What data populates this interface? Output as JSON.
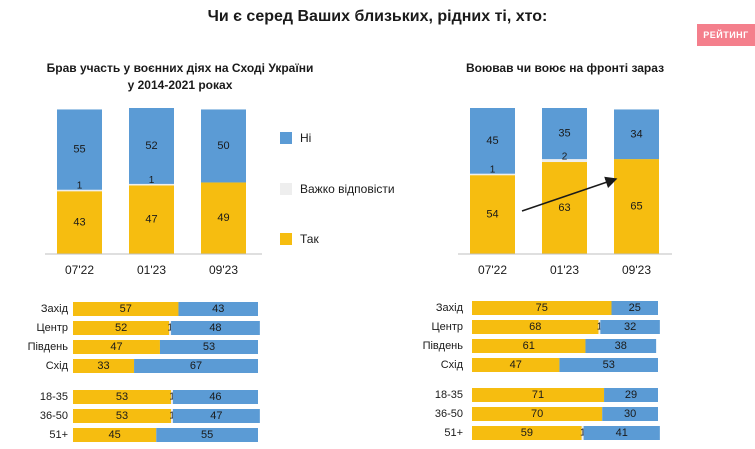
{
  "page": {
    "title": "Чи є серед Ваших близьких, рідних ті, хто:",
    "badge": "РЕЙТИНГ"
  },
  "colors": {
    "yes": "#f6bd10",
    "no": "#5b9bd5",
    "hard": "#eeeeee",
    "bg": "#ffffff",
    "badge": "#f47f8c",
    "arrow": "#1a1a1a"
  },
  "legend": [
    {
      "label": "Ні",
      "color": "#5b9bd5"
    },
    {
      "label": "Важко відповісти",
      "color": "#eeeeee"
    },
    {
      "label": "Так",
      "color": "#f6bd10"
    }
  ],
  "chart_data": [
    {
      "id": "participated-stacked",
      "type": "bar",
      "title": "Брав участь у воєнних діях на Сході України у 2014-2021 роках",
      "title_lines": [
        "Брав участь у воєнних діях на Сході України",
        "у 2014-2021 роках"
      ],
      "categories": [
        "07'22",
        "01'23",
        "09'23"
      ],
      "series": [
        {
          "name": "Так",
          "values": [
            43,
            47,
            49
          ]
        },
        {
          "name": "Важко відповісти",
          "values": [
            1,
            1,
            0
          ]
        },
        {
          "name": "Ні",
          "values": [
            55,
            52,
            50
          ]
        }
      ],
      "ylim": [
        0,
        100
      ]
    },
    {
      "id": "fighting-stacked",
      "type": "bar",
      "title": "Воював чи воює на фронті зараз",
      "title_lines": [
        "Воював чи воює на фронті зараз"
      ],
      "categories": [
        "07'22",
        "01'23",
        "09'23"
      ],
      "series": [
        {
          "name": "Так",
          "values": [
            54,
            63,
            65
          ]
        },
        {
          "name": "Важко відповісти",
          "values": [
            1,
            2,
            0
          ]
        },
        {
          "name": "Ні",
          "values": [
            45,
            35,
            34
          ]
        }
      ],
      "ylim": [
        0,
        100
      ],
      "annotation": "arrow-trend-up"
    },
    {
      "id": "participated-by-group",
      "type": "bar",
      "orientation": "horizontal",
      "groups": [
        {
          "categories": [
            "Захід",
            "Центр",
            "Південь",
            "Схід"
          ],
          "series": [
            {
              "name": "Так",
              "values": [
                57,
                52,
                47,
                33
              ]
            },
            {
              "name": "Важко відповісти",
              "values": [
                0,
                1,
                0,
                0
              ]
            },
            {
              "name": "Ні",
              "values": [
                43,
                48,
                53,
                67
              ]
            }
          ]
        },
        {
          "categories": [
            "18-35",
            "36-50",
            "51+"
          ],
          "series": [
            {
              "name": "Так",
              "values": [
                53,
                53,
                45
              ]
            },
            {
              "name": "Важко відповісти",
              "values": [
                1,
                1,
                0
              ]
            },
            {
              "name": "Ні",
              "values": [
                46,
                47,
                55
              ]
            }
          ]
        }
      ]
    },
    {
      "id": "fighting-by-group",
      "type": "bar",
      "orientation": "horizontal",
      "groups": [
        {
          "categories": [
            "Захід",
            "Центр",
            "Південь",
            "Схід"
          ],
          "series": [
            {
              "name": "Так",
              "values": [
                75,
                68,
                61,
                47
              ]
            },
            {
              "name": "Важко відповісти",
              "values": [
                0,
                1,
                0,
                0
              ]
            },
            {
              "name": "Ні",
              "values": [
                25,
                32,
                38,
                53
              ]
            }
          ]
        },
        {
          "categories": [
            "18-35",
            "36-50",
            "51+"
          ],
          "series": [
            {
              "name": "Так",
              "values": [
                71,
                70,
                59
              ]
            },
            {
              "name": "Важко відповісти",
              "values": [
                0,
                0,
                1
              ]
            },
            {
              "name": "Ні",
              "values": [
                29,
                30,
                41
              ]
            }
          ]
        }
      ]
    }
  ]
}
